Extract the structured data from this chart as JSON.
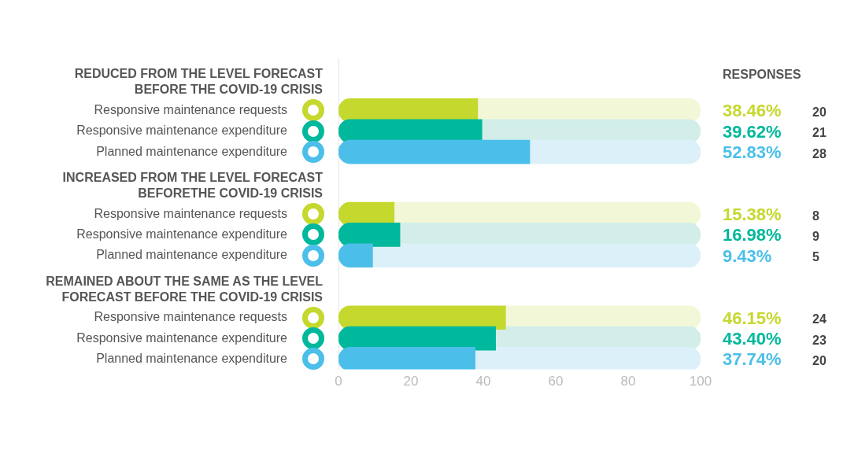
{
  "chart_data": {
    "type": "bar",
    "orientation": "horizontal",
    "categories": [
      null,
      null,
      "Responsive maintenance requests",
      "Responsive maintenance expenditure",
      "Planned maintenance expenditure",
      null,
      null,
      "Responsive maintenance requests",
      "Responsive maintenance expenditure",
      "Planned maintenance expenditure",
      null,
      null,
      "Responsive maintenance requests",
      "Responsive maintenance expenditure",
      "Planned maintenance expenditure"
    ],
    "stacked": true,
    "series": [
      {
        "colors": [
          null,
          null,
          "#c5d82e",
          "#00b89c",
          "#4bbfe9",
          null,
          null,
          "#c5d82e",
          "#00b89c",
          "#4bbfe9",
          null,
          null,
          "#c5d82e",
          "#00b89c",
          "#4bbfe9"
        ],
        "values": [
          null,
          null,
          38.46,
          39.62,
          52.83,
          null,
          null,
          15.38,
          16.98,
          9.43,
          null,
          null,
          46.15,
          43.4,
          37.74
        ]
      },
      {
        "colors": [
          null,
          null,
          "#f2f7d8",
          "#d3eee8",
          "#dcf0fa",
          null,
          null,
          "#f2f7d8",
          "#d3eee8",
          "#dcf0fa",
          null,
          null,
          "#f2f7d8",
          "#d3eee8",
          "#dcf0fa"
        ],
        "values": [
          null,
          null,
          61.54,
          60.38,
          47.17,
          null,
          null,
          84.62,
          83.02,
          90.57,
          null,
          null,
          53.85,
          56.6,
          62.26
        ]
      }
    ],
    "annotations": [
      "REDUCED FROM THE LEVEL FORECAST BEFORE THE COVID-19 CRISIS",
      "INCREASED FROM THE LEVEL FORECAST BEFORETHE COVID-19 CRISIS",
      "REMAINED ABOUT THE SAME AS THE LEVEL FORECAST BEFORE THE COVID-19 CRISIS",
      "RESPONSES",
      "38.46%",
      "39.62%",
      "52.83%",
      "15.38%",
      "16.98%",
      "9.43%",
      "46.15%",
      "43.40%",
      "37.74%",
      "20",
      "21",
      "28",
      "8",
      "9",
      "5",
      "24",
      "23",
      "20"
    ],
    "xlim": [
      0,
      100
    ],
    "xticks": [
      0,
      20,
      40,
      60,
      80,
      100
    ],
    "grid": false,
    "legend": false
  }
}
